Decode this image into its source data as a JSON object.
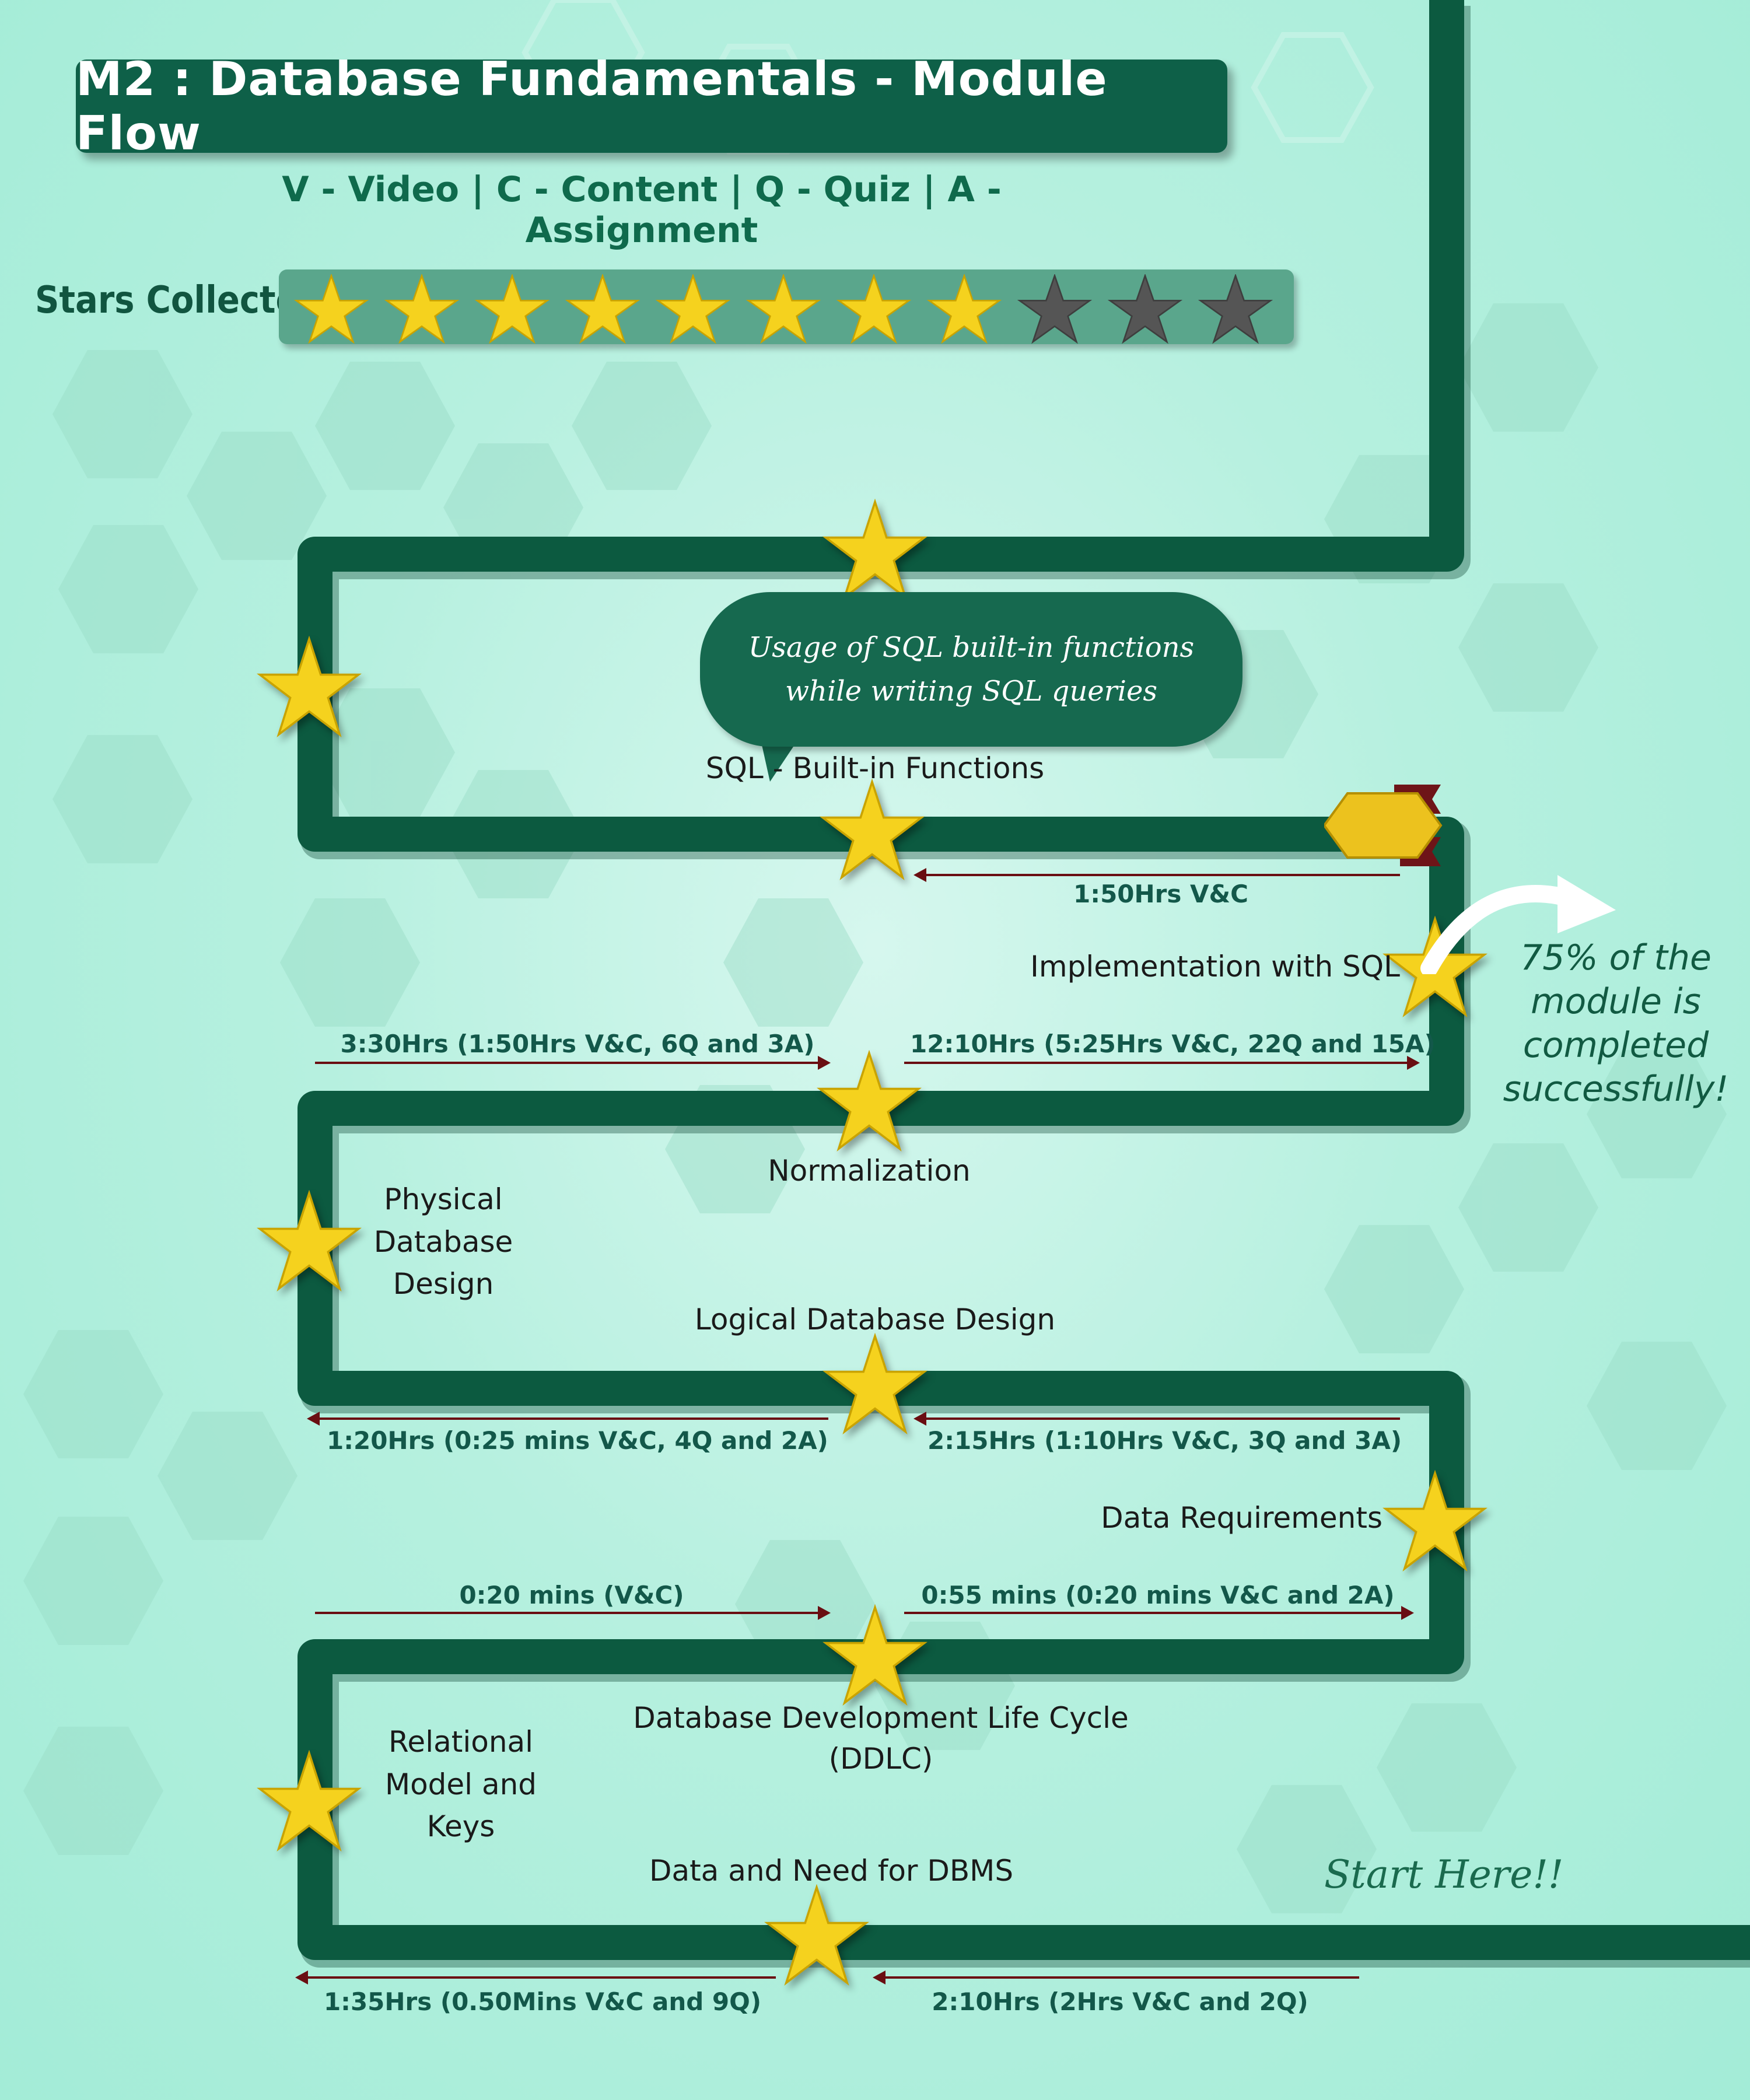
{
  "header": {
    "title": "M2 : Database Fundamentals - Module Flow",
    "legend": "V - Video | C - Content | Q - Quiz | A - Assignment"
  },
  "stars": {
    "label": "Stars Collected",
    "collected": 8,
    "total": 11
  },
  "topics": {
    "sql_builtin": "SQL - Built-in Functions",
    "implementation_sql": "Implementation with SQL",
    "normalization": "Normalization",
    "physical_db_line1": "Physical",
    "physical_db_line2": "Database",
    "physical_db_line3": "Design",
    "logical_db": "Logical Database Design",
    "data_requirements": "Data Requirements",
    "ddlc_line1": "Database Development Life Cycle",
    "ddlc_line2": "(DDLC)",
    "relational_line1": "Relational",
    "relational_line2": "Model and",
    "relational_line3": "Keys",
    "data_need": "Data and Need for DBMS"
  },
  "durations": {
    "d_sql": "1:50Hrs V&C",
    "d_330": "3:30Hrs (1:50Hrs V&C, 6Q and 3A)",
    "d_1210": "12:10Hrs (5:25Hrs V&C, 22Q and 15A)",
    "d_120": "1:20Hrs (0:25 mins V&C, 4Q and 2A)",
    "d_215": "2:15Hrs (1:10Hrs V&C, 3Q and 3A)",
    "d_020": "0:20 mins (V&C)",
    "d_055": "0:55 mins (0:20 mins V&C and 2A)",
    "d_135": "1:35Hrs (0.50Mins V&C and 9Q)",
    "d_210": "2:10Hrs (2Hrs V&C and 2Q)"
  },
  "callout": {
    "line1": "Usage of SQL built-in functions",
    "line2": "while writing SQL queries"
  },
  "progress": {
    "line1": "75% of the",
    "line2": "module is",
    "line3": "completed",
    "line4": "successfully!"
  },
  "start_label": "Start Here!!",
  "colors": {
    "path": "#0c5a40",
    "star_gold": "#f5d21e",
    "star_gray": "#555555",
    "arrow": "#6a0e12",
    "title_bg": "#0e6048"
  }
}
